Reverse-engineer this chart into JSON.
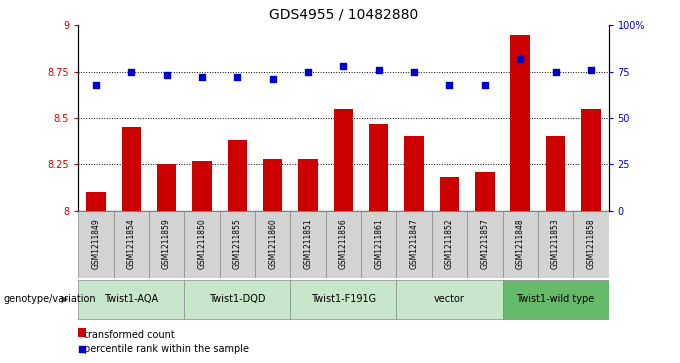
{
  "title": "GDS4955 / 10482880",
  "samples": [
    "GSM1211849",
    "GSM1211854",
    "GSM1211859",
    "GSM1211850",
    "GSM1211855",
    "GSM1211860",
    "GSM1211851",
    "GSM1211856",
    "GSM1211861",
    "GSM1211847",
    "GSM1211852",
    "GSM1211857",
    "GSM1211848",
    "GSM1211853",
    "GSM1211858"
  ],
  "bar_values": [
    8.1,
    8.45,
    8.25,
    8.27,
    8.38,
    8.28,
    8.28,
    8.55,
    8.47,
    8.4,
    8.18,
    8.21,
    8.95,
    8.4,
    8.55
  ],
  "dot_values": [
    68,
    75,
    73,
    72,
    72,
    71,
    75,
    78,
    76,
    75,
    68,
    68,
    82,
    75,
    76
  ],
  "ylim_left": [
    8.0,
    9.0
  ],
  "ylim_right": [
    0,
    100
  ],
  "yticks_left": [
    8.0,
    8.25,
    8.5,
    8.75,
    9.0
  ],
  "ytick_labels_left": [
    "8",
    "8.25",
    "8.5",
    "8.75",
    "9"
  ],
  "yticks_right": [
    0,
    25,
    50,
    75,
    100
  ],
  "ytick_labels_right": [
    "0",
    "25",
    "50",
    "75",
    "100%"
  ],
  "hlines": [
    8.25,
    8.5,
    8.75
  ],
  "bar_color": "#cc0000",
  "dot_color": "#0000cc",
  "groups": [
    {
      "label": "Twist1-AQA",
      "start": 0,
      "end": 3
    },
    {
      "label": "Twist1-DQD",
      "start": 3,
      "end": 6
    },
    {
      "label": "Twist1-F191G",
      "start": 6,
      "end": 9
    },
    {
      "label": "vector",
      "start": 9,
      "end": 12
    },
    {
      "label": "Twist1-wild type",
      "start": 12,
      "end": 15
    }
  ],
  "group_colors": [
    "#c8e6c9",
    "#c8e6c9",
    "#c8e6c9",
    "#c8e6c9",
    "#66bb6a"
  ],
  "sample_box_color": "#d3d3d3",
  "legend_bar_label": "transformed count",
  "legend_dot_label": "percentile rank within the sample",
  "genotype_label": "genotype/variation",
  "left_tick_color": "#cc0000",
  "right_tick_color": "#0000cc",
  "title_fontsize": 10,
  "tick_fontsize": 7,
  "sample_fontsize": 5.5,
  "group_fontsize": 7,
  "legend_fontsize": 7,
  "bar_width": 0.55
}
